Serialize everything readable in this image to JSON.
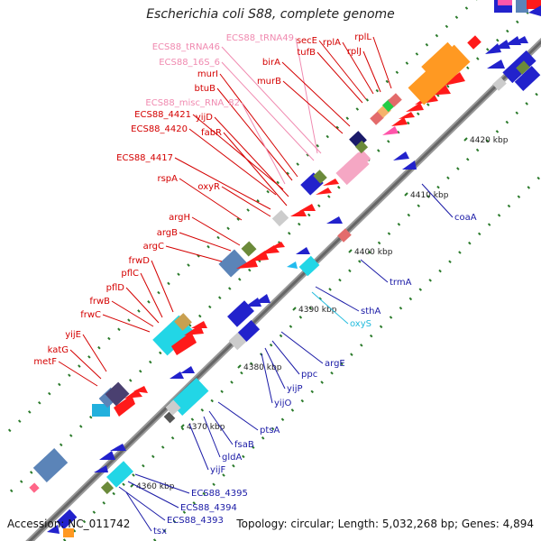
{
  "title": "Escherichia coli S88, complete genome",
  "footer": {
    "accession": "Accession: NC_011742",
    "summary": "Topology: circular; Length: 5,032,268 bp; Genes: 4,894"
  },
  "colors": {
    "red_label": "#d40000",
    "blue_label": "#1a1aa6",
    "pink_label": "#f08ab0",
    "cyan_label": "#22bbdd",
    "backbone": "#777777",
    "tick": "#2a7a2a"
  },
  "ticks": [
    "4360 kbp",
    "4370 kbp",
    "4380 kbp",
    "4390 kbp",
    "4400 kbp",
    "4410 kbp",
    "4420 kbp"
  ],
  "labels_upper": [
    {
      "text": "ECS88_tRNA49",
      "color": "pink"
    },
    {
      "text": "secE",
      "color": "red"
    },
    {
      "text": "rplA",
      "color": "red"
    },
    {
      "text": "rplL",
      "color": "red"
    },
    {
      "text": "ECS88_tRNA46",
      "color": "pink"
    },
    {
      "text": "ECS88_16S_6",
      "color": "pink"
    },
    {
      "text": "birA",
      "color": "red"
    },
    {
      "text": "tufB",
      "color": "red"
    },
    {
      "text": "rplJ",
      "color": "red"
    },
    {
      "text": "murB",
      "color": "red"
    },
    {
      "text": "murI",
      "color": "red"
    },
    {
      "text": "btuB",
      "color": "red"
    },
    {
      "text": "ECS88_misc_RNA_82",
      "color": "pink"
    },
    {
      "text": "ECS88_4421",
      "color": "red"
    },
    {
      "text": "yijD",
      "color": "red"
    },
    {
      "text": "ECS88_4420",
      "color": "red"
    },
    {
      "text": "fabR",
      "color": "red"
    },
    {
      "text": "ECS88_4417",
      "color": "red"
    },
    {
      "text": "rspA",
      "color": "red"
    },
    {
      "text": "oxyR",
      "color": "red"
    },
    {
      "text": "argH",
      "color": "red"
    },
    {
      "text": "argB",
      "color": "red"
    },
    {
      "text": "argC",
      "color": "red"
    },
    {
      "text": "frwD",
      "color": "red"
    },
    {
      "text": "pflC",
      "color": "red"
    },
    {
      "text": "pflD",
      "color": "red"
    },
    {
      "text": "frwB",
      "color": "red"
    },
    {
      "text": "frwC",
      "color": "red"
    },
    {
      "text": "yijE",
      "color": "red"
    },
    {
      "text": "katG",
      "color": "red"
    },
    {
      "text": "metF",
      "color": "red"
    }
  ],
  "labels_lower": [
    {
      "text": "coaA",
      "color": "blue"
    },
    {
      "text": "trmA",
      "color": "blue"
    },
    {
      "text": "sthA",
      "color": "blue"
    },
    {
      "text": "oxyS",
      "color": "cyan"
    },
    {
      "text": "argE",
      "color": "blue"
    },
    {
      "text": "ppc",
      "color": "blue"
    },
    {
      "text": "yijP",
      "color": "blue"
    },
    {
      "text": "yijO",
      "color": "blue"
    },
    {
      "text": "ptsA",
      "color": "blue"
    },
    {
      "text": "fsaB",
      "color": "blue"
    },
    {
      "text": "gldA",
      "color": "blue"
    },
    {
      "text": "yijF",
      "color": "blue"
    },
    {
      "text": "ECS88_4395",
      "color": "blue"
    },
    {
      "text": "ECS88_4394",
      "color": "blue"
    },
    {
      "text": "ECS88_4393",
      "color": "blue"
    },
    {
      "text": "tsx",
      "color": "blue"
    }
  ]
}
